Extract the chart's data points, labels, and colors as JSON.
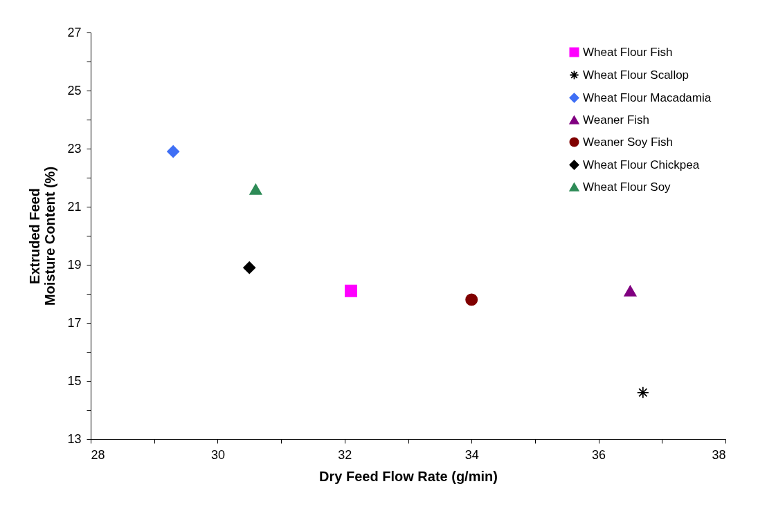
{
  "chart_data": {
    "type": "scatter",
    "xlabel": "Dry Feed Flow Rate (g/min)",
    "ylabel": "Extruded Feed\nMoisture Content (%)",
    "xlim": [
      28,
      38
    ],
    "ylim": [
      13,
      27
    ],
    "xticks": [
      28,
      {
        "value": 29,
        "label": null
      },
      30,
      {
        "value": 31,
        "label": null
      },
      32,
      {
        "value": 33,
        "label": null
      },
      34,
      {
        "value": 35,
        "label": null
      },
      36,
      {
        "value": 37,
        "label": null
      },
      38
    ],
    "yticks": [
      13,
      {
        "value": 14,
        "label": null
      },
      15,
      {
        "value": 16,
        "label": null
      },
      17,
      {
        "value": 18,
        "label": null
      },
      19,
      {
        "value": 20,
        "label": null
      },
      21,
      {
        "value": 22,
        "label": null
      },
      23,
      {
        "value": 24,
        "label": null
      },
      25,
      {
        "value": 26,
        "label": null
      },
      27
    ],
    "grid": false,
    "legend": "top right",
    "series": [
      {
        "name": "Wheat Flour Fish",
        "color": "#ff00ff",
        "marker": "square",
        "x": [
          32.1
        ],
        "values": [
          18.1
        ]
      },
      {
        "name": "Wheat Flour Scallop",
        "color": "#000000",
        "marker": "cross",
        "x": [
          36.7
        ],
        "values": [
          14.6
        ]
      },
      {
        "name": "Wheat Flour Macadamia",
        "color": "#3f6ff5",
        "marker": "diamond",
        "x": [
          29.3
        ],
        "values": [
          22.9
        ]
      },
      {
        "name": "Weaner Fish",
        "color": "#800080",
        "marker": "triangle",
        "x": [
          36.5
        ],
        "values": [
          18.1
        ]
      },
      {
        "name": "Weaner Soy Fish",
        "color": "#800000",
        "marker": "circle",
        "x": [
          34.0
        ],
        "values": [
          17.8
        ]
      },
      {
        "name": "Wheat Flour Chickpea",
        "color": "#000000",
        "marker": "diamond",
        "x": [
          30.5
        ],
        "values": [
          18.9
        ]
      },
      {
        "name": "Wheat Flour Soy",
        "color": "#2e8b57",
        "marker": "triangle",
        "x": [
          30.6
        ],
        "values": [
          21.6
        ]
      }
    ]
  }
}
